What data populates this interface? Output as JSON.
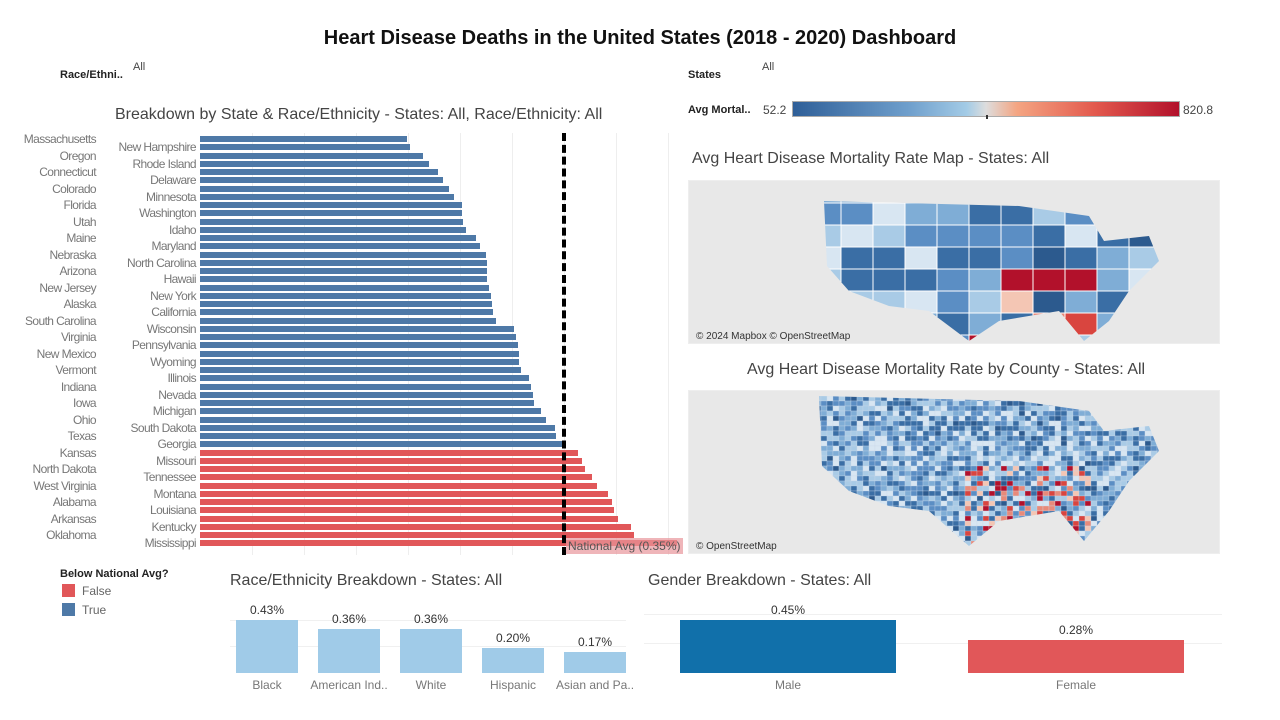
{
  "title": "Heart Disease Deaths in the United States (2018 - 2020) Dashboard",
  "filters": {
    "race_label": "Race/Ethni..",
    "race_value": "All",
    "states_label": "States",
    "states_value": "All"
  },
  "color_legend": {
    "label": "Avg Mortal..",
    "min": "52.2",
    "max": "820.8",
    "colors": [
      "#2f5f98",
      "#a3cbe6",
      "#f4a582",
      "#e35a4e",
      "#b2112b"
    ]
  },
  "state_chart": {
    "title": "Breakdown by State & Race/Ethnicity - States: All, Race/Ethnicity: All",
    "national_avg_label": "National Avg (0.35%)",
    "colors": {
      "true": "#4e79a7",
      "false": "#e15759"
    },
    "chart_data": {
      "type": "bar",
      "orientation": "horizontal",
      "xlim": [
        0,
        0.5
      ],
      "unit": "%",
      "national_avg": 0.35,
      "categories": [
        "Massachusetts",
        "New Hampshire",
        "Oregon",
        "Rhode Island",
        "Connecticut",
        "Delaware",
        "Colorado",
        "Minnesota",
        "Florida",
        "Washington",
        "Utah",
        "Idaho",
        "Maine",
        "Maryland",
        "Nebraska",
        "North Carolina",
        "Arizona",
        "Hawaii",
        "New Jersey",
        "New York",
        "Alaska",
        "California",
        "South Carolina",
        "Wisconsin",
        "Virginia",
        "Pennsylvania",
        "New Mexico",
        "Wyoming",
        "Vermont",
        "Illinois",
        "Indiana",
        "Nevada",
        "Iowa",
        "Michigan",
        "Ohio",
        "South Dakota",
        "Texas",
        "Georgia",
        "Kansas",
        "Missouri",
        "North Dakota",
        "Tennessee",
        "West Virginia",
        "Montana",
        "Alabama",
        "Louisiana",
        "Arkansas",
        "Kentucky",
        "Oklahoma",
        "Mississippi"
      ],
      "values": [
        0.199,
        0.202,
        0.214,
        0.22,
        0.229,
        0.234,
        0.239,
        0.244,
        0.252,
        0.252,
        0.253,
        0.256,
        0.265,
        0.269,
        0.275,
        0.276,
        0.276,
        0.276,
        0.278,
        0.28,
        0.281,
        0.282,
        0.285,
        0.302,
        0.304,
        0.306,
        0.307,
        0.307,
        0.309,
        0.316,
        0.318,
        0.32,
        0.321,
        0.328,
        0.333,
        0.341,
        0.342,
        0.349,
        0.363,
        0.367,
        0.37,
        0.377,
        0.382,
        0.392,
        0.396,
        0.398,
        0.402,
        0.414,
        0.417,
        0.459
      ]
    }
  },
  "legend": {
    "title": "Below National Avg?",
    "items": [
      {
        "label": "False",
        "color": "#e15759"
      },
      {
        "label": "True",
        "color": "#4e79a7"
      }
    ]
  },
  "state_map": {
    "title": "Avg Heart Disease Mortality Rate Map - States: All",
    "attribution": "© 2024 Mapbox © OpenStreetMap"
  },
  "county_map": {
    "title": "Avg Heart Disease Mortality Rate by County - States: All",
    "attribution": "© OpenStreetMap"
  },
  "race_chart": {
    "title": "Race/Ethnicity Breakdown - States: All",
    "color": "#a0cbe8",
    "chart_data": {
      "type": "bar",
      "categories": [
        "Black",
        "American Ind..",
        "White",
        "Hispanic",
        "Asian and Pa.."
      ],
      "values": [
        0.43,
        0.36,
        0.36,
        0.2,
        0.17
      ],
      "labels": [
        "0.43%",
        "0.36%",
        "0.36%",
        "0.20%",
        "0.17%"
      ]
    }
  },
  "gender_chart": {
    "title": "Gender Breakdown - States: All",
    "chart_data": {
      "type": "bar",
      "categories": [
        "Male",
        "Female"
      ],
      "values": [
        0.45,
        0.28
      ],
      "labels": [
        "0.45%",
        "0.28%"
      ],
      "colors": [
        "#1170aa",
        "#e15759"
      ]
    }
  }
}
